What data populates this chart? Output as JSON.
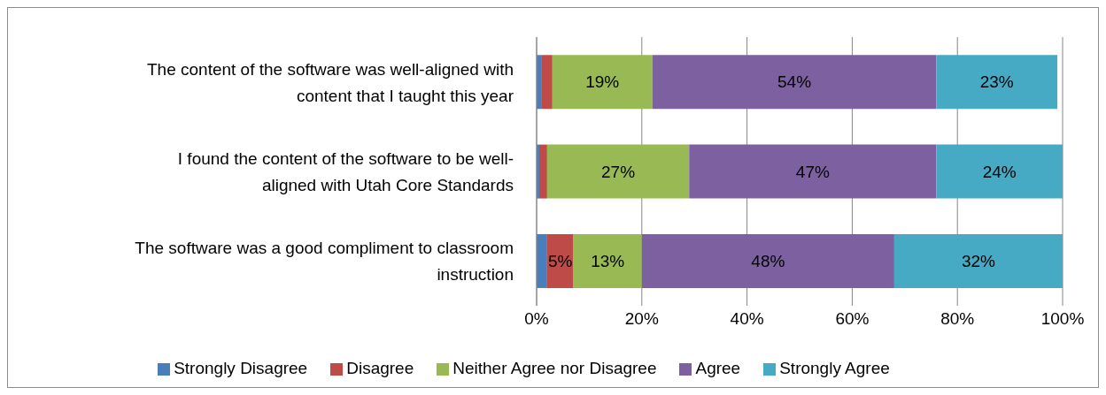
{
  "chart_data": {
    "type": "bar",
    "orientation": "horizontal",
    "stacked": true,
    "categories": [
      "The content of the software was well-aligned with content that I taught this year",
      "I found the content of the software to be well-aligned with Utah Core Standards",
      "The software was a good compliment to classroom instruction"
    ],
    "series": [
      {
        "name": "Strongly Disagree",
        "color": "#4a7ebb",
        "values": [
          1,
          0.5,
          2
        ],
        "value_labels": [
          null,
          null,
          null
        ]
      },
      {
        "name": "Disagree",
        "color": "#be4b48",
        "values": [
          2,
          1.5,
          5
        ],
        "value_labels": [
          null,
          null,
          "5%"
        ]
      },
      {
        "name": "Neither Agree nor Disagree",
        "color": "#98b954",
        "values": [
          19,
          27,
          13
        ],
        "value_labels": [
          "19%",
          "27%",
          "13%"
        ]
      },
      {
        "name": "Agree",
        "color": "#7d60a0",
        "values": [
          54,
          47,
          48
        ],
        "value_labels": [
          "54%",
          "47%",
          "48%"
        ]
      },
      {
        "name": "Strongly Agree",
        "color": "#46aac5",
        "values": [
          23,
          24,
          32
        ],
        "value_labels": [
          "23%",
          "24%",
          "32%"
        ]
      }
    ],
    "xlim": [
      0,
      100
    ],
    "xticks": [
      {
        "value": 0,
        "label": "0%"
      },
      {
        "value": 20,
        "label": "20%"
      },
      {
        "value": 40,
        "label": "40%"
      },
      {
        "value": 60,
        "label": "60%"
      },
      {
        "value": 80,
        "label": "80%"
      },
      {
        "value": 100,
        "label": "100%"
      }
    ],
    "grid": "x",
    "legend": "bottom"
  }
}
